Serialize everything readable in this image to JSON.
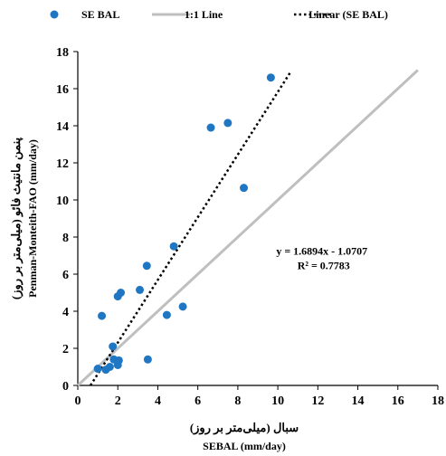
{
  "chart_data": {
    "type": "scatter",
    "xlabel_fa": "سبال (میلی‌متر بر روز)",
    "xlabel_en": "SEBAL (mm/day)",
    "ylabel_fa": "پنمن مانتیث فائو (میلی‌متر بر روز)",
    "ylabel_en": "Penman-Monteith-FAO (mm/day)",
    "xlim": [
      0,
      18
    ],
    "ylim": [
      0,
      18
    ],
    "xticks": [
      0,
      2,
      4,
      6,
      8,
      10,
      12,
      14,
      16,
      18
    ],
    "yticks": [
      0,
      2,
      4,
      6,
      8,
      10,
      12,
      14,
      16,
      18
    ],
    "grid": false,
    "legend_position": "top",
    "legend": [
      {
        "label": "SE BAL",
        "kind": "marker",
        "color": "#1f77c4"
      },
      {
        "label": "1:1 Line",
        "kind": "solid-line",
        "color": "#bfbfbf"
      },
      {
        "label": "Linear (SE BAL)",
        "kind": "dotted-line",
        "color": "#000000"
      }
    ],
    "series": [
      {
        "name": "SE BAL",
        "color": "#1f77c4",
        "points": [
          {
            "x": 1.0,
            "y": 0.9
          },
          {
            "x": 1.4,
            "y": 0.85
          },
          {
            "x": 1.6,
            "y": 1.0
          },
          {
            "x": 1.8,
            "y": 1.4
          },
          {
            "x": 2.0,
            "y": 1.1
          },
          {
            "x": 2.05,
            "y": 1.35
          },
          {
            "x": 1.75,
            "y": 2.1
          },
          {
            "x": 1.2,
            "y": 3.75
          },
          {
            "x": 2.0,
            "y": 4.8
          },
          {
            "x": 2.15,
            "y": 5.0
          },
          {
            "x": 3.1,
            "y": 5.15
          },
          {
            "x": 3.45,
            "y": 6.45
          },
          {
            "x": 3.5,
            "y": 1.4
          },
          {
            "x": 4.45,
            "y": 3.8
          },
          {
            "x": 4.8,
            "y": 7.5
          },
          {
            "x": 5.25,
            "y": 4.25
          },
          {
            "x": 6.65,
            "y": 13.9
          },
          {
            "x": 7.5,
            "y": 14.15
          },
          {
            "x": 8.3,
            "y": 10.65
          },
          {
            "x": 9.65,
            "y": 16.6
          }
        ]
      }
    ],
    "one_to_one_line": {
      "x": [
        0,
        17
      ],
      "y": [
        0,
        17
      ],
      "color": "#bfbfbf"
    },
    "trendline": {
      "slope": 1.6894,
      "intercept": -1.0707,
      "x_range": [
        0.634,
        10.6
      ],
      "color": "#000000"
    },
    "annotation": {
      "equation": "y = 1.6894x - 1.0707",
      "r_squared": "R² = 0.7783",
      "anchor": [
        12.2,
        7.05
      ]
    }
  }
}
